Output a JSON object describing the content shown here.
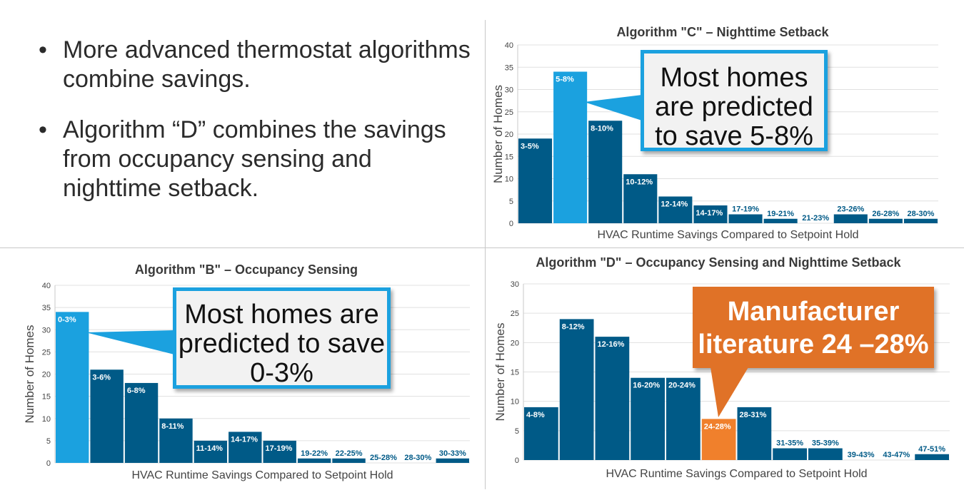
{
  "bullets": [
    "More advanced thermostat algorithms combine savings.",
    "Algorithm “D” combines the savings from occupancy sensing and nighttime setback."
  ],
  "colors": {
    "bar": "#005a87",
    "highlight_blue": "#1ba1df",
    "highlight_orange": "#f0802c",
    "callout_border": "#1ba1df",
    "callout_orange": "#e07227",
    "grid": "#e0e0e0"
  },
  "chart_data": [
    {
      "id": "C",
      "type": "bar",
      "title": "Algorithm \"C\" – Nighttime Setback",
      "xlabel": "HVAC Runtime Savings Compared to Setpoint Hold",
      "ylabel": "Number of Homes",
      "ylim": [
        0,
        40
      ],
      "yticks": [
        0,
        5,
        10,
        15,
        20,
        25,
        30,
        35,
        40
      ],
      "grid": true,
      "categories": [
        "3-5%",
        "5-8%",
        "8-10%",
        "10-12%",
        "12-14%",
        "14-17%",
        "17-19%",
        "19-21%",
        "21-23%",
        "23-26%",
        "26-28%",
        "28-30%"
      ],
      "values": [
        19,
        34,
        23,
        11,
        6,
        4,
        2,
        1,
        0,
        2,
        1,
        1
      ],
      "highlight_index": 1,
      "highlight_color": "#1ba1df"
    },
    {
      "id": "B",
      "type": "bar",
      "title": "Algorithm \"B\" – Occupancy Sensing",
      "xlabel": "HVAC Runtime Savings Compared to Setpoint Hold",
      "ylabel": "Number of Homes",
      "ylim": [
        0,
        40
      ],
      "yticks": [
        0,
        5,
        10,
        15,
        20,
        25,
        30,
        35,
        40
      ],
      "grid": true,
      "categories": [
        "0-3%",
        "3-6%",
        "6-8%",
        "8-11%",
        "11-14%",
        "14-17%",
        "17-19%",
        "19-22%",
        "22-25%",
        "25-28%",
        "28-30%",
        "30-33%"
      ],
      "values": [
        34,
        21,
        18,
        10,
        5,
        7,
        5,
        1,
        1,
        0,
        0,
        1
      ],
      "highlight_index": 0,
      "highlight_color": "#1ba1df"
    },
    {
      "id": "D",
      "type": "bar",
      "title": "Algorithm \"D\" – Occupancy Sensing and Nighttime Setback",
      "xlabel": "HVAC Runtime Savings Compared to Setpoint Hold",
      "ylabel": "Number of Homes",
      "ylim": [
        0,
        30
      ],
      "yticks": [
        0,
        5,
        10,
        15,
        20,
        25,
        30
      ],
      "grid": true,
      "categories": [
        "4-8%",
        "8-12%",
        "12-16%",
        "16-20%",
        "20-24%",
        "24-28%",
        "28-31%",
        "31-35%",
        "35-39%",
        "39-43%",
        "43-47%",
        "47-51%"
      ],
      "values": [
        9,
        24,
        21,
        14,
        14,
        7,
        9,
        2,
        2,
        0,
        0,
        1
      ],
      "highlight_index": 5,
      "highlight_color": "#f0802c"
    }
  ],
  "callouts": {
    "c": "Most homes are predicted to save 5-8%",
    "b": "Most homes are predicted to save 0-3%",
    "d": "Manufacturer literature 24 –28%"
  }
}
